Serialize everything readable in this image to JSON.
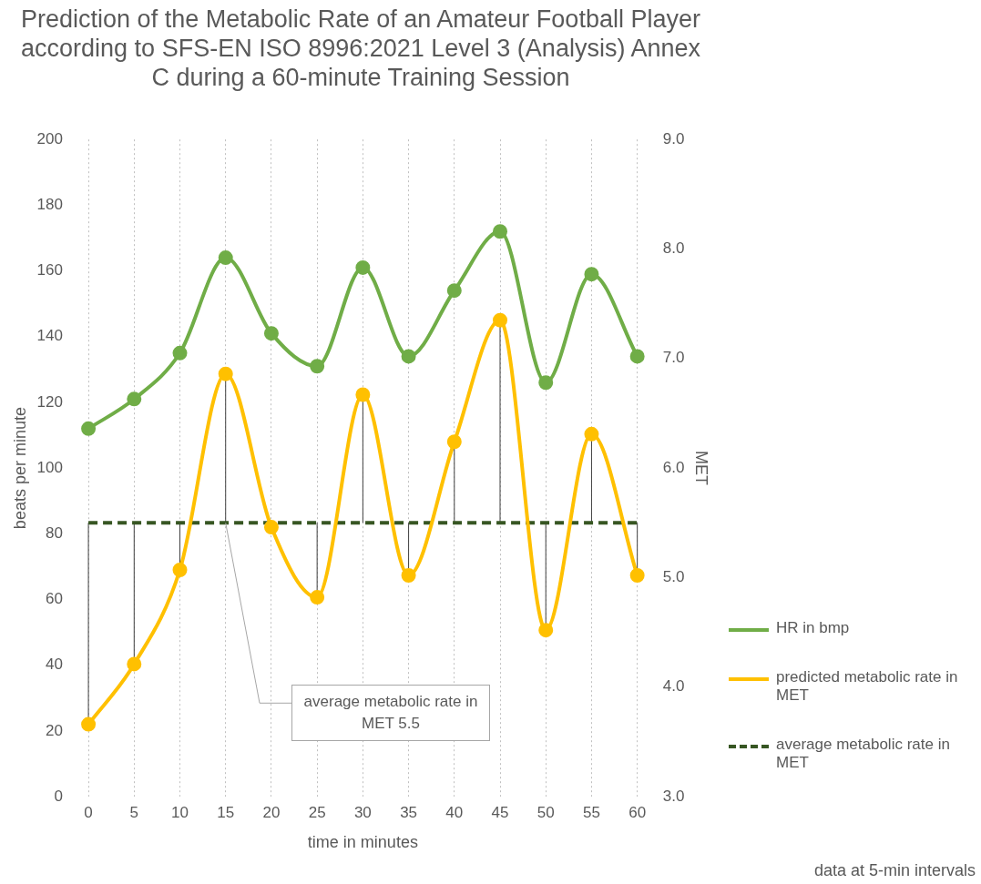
{
  "chart_data": {
    "type": "line",
    "title": "Prediction of the Metabolic Rate of an Amateur Football Player according to SFS-EN ISO 8996:2021 Level 3 (Analysis) Annex C during a 60-minute Training Session",
    "xlabel": "time in minutes",
    "ylabel": "beats per minute",
    "y2label": "MET",
    "categories": [
      "0",
      "5",
      "10",
      "15",
      "20",
      "25",
      "30",
      "35",
      "40",
      "45",
      "50",
      "55",
      "60"
    ],
    "series": [
      {
        "name": "HR in bmp",
        "color": "#70ad47",
        "values": [
          112,
          121,
          135,
          164,
          141,
          131,
          161,
          134,
          154,
          172,
          126,
          159,
          134
        ]
      },
      {
        "name": "predicted metabolic rate in MET",
        "color": "#ffc000",
        "axis": "y2",
        "values": [
          3.66,
          4.21,
          5.07,
          6.86,
          5.46,
          4.82,
          6.67,
          5.02,
          6.24,
          7.35,
          4.52,
          6.31,
          5.02
        ],
        "errors": [
          [
            3.66,
            5.5
          ],
          [
            4.21,
            5.5
          ],
          [
            5.07,
            5.5
          ],
          [
            5.5,
            6.86
          ],
          null,
          [
            4.82,
            5.5
          ],
          [
            5.5,
            6.67
          ],
          [
            5.02,
            5.5
          ],
          [
            5.5,
            6.24
          ],
          [
            5.5,
            7.35
          ],
          [
            4.52,
            5.5
          ],
          [
            5.5,
            6.31
          ],
          [
            5.02,
            5.5
          ]
        ]
      }
    ],
    "ylim": [
      0,
      200
    ],
    "yticks": [
      0,
      20,
      40,
      60,
      80,
      100,
      120,
      140,
      160,
      180,
      200
    ],
    "y2lim": [
      3,
      9
    ],
    "y2ticks": [
      {
        "value": 3,
        "label": "3.0"
      },
      {
        "value": 4,
        "label": "4.0"
      },
      {
        "value": 5,
        "label": "5.0"
      },
      {
        "value": 6,
        "label": "6.0"
      },
      {
        "value": 7,
        "label": "7.0"
      },
      {
        "value": 8,
        "label": "8.0"
      },
      {
        "value": 9,
        "label": "9.0"
      }
    ],
    "ref_lines": [
      {
        "axis": "y2",
        "value": 5.5,
        "label": "average metabolic rate in MET",
        "color": "#375623",
        "line_style": "dashed"
      }
    ],
    "annotations": [
      {
        "text": "average metabolic rate in MET 5.5",
        "x": "15",
        "y": 83.3
      },
      "data at 5-min intervals"
    ],
    "grid": "x",
    "legend": "right",
    "marker": "circle",
    "line_style": "solid"
  }
}
